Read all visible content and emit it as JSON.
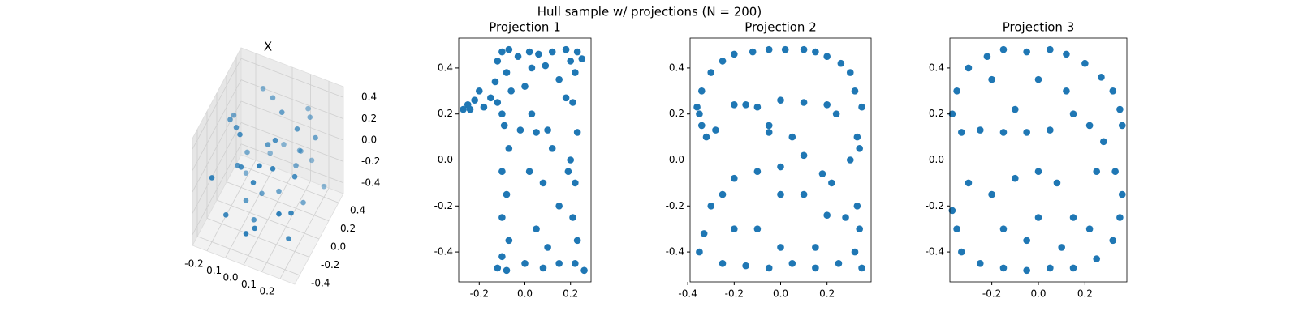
{
  "title": "Hull sample w/ projections (N = 200)",
  "chart_data": [
    {
      "type": "scatter3d",
      "title": "X",
      "color": "#1f77b4",
      "x": [
        -0.2,
        -0.15,
        -0.1,
        -0.05,
        0.0,
        0.05,
        0.1,
        0.15,
        0.2,
        0.22,
        -0.18,
        -0.12,
        -0.08,
        0.02,
        0.08,
        0.12,
        0.18,
        -0.22,
        -0.02,
        0.06,
        0.14,
        -0.16,
        0.1,
        0.2,
        -0.06,
        0.0,
        0.16,
        -0.1,
        0.04,
        0.22,
        -0.2,
        -0.14,
        0.12,
        0.08,
        -0.04,
        0.18,
        -0.24,
        0.0,
        0.1,
        -0.12
      ],
      "y": [
        -0.4,
        -0.3,
        -0.2,
        -0.1,
        0.0,
        0.1,
        0.2,
        0.3,
        0.4,
        -0.35,
        0.25,
        0.35,
        -0.25,
        0.15,
        -0.15,
        0.45,
        -0.45,
        0.05,
        0.4,
        -0.4,
        0.2,
        -0.05,
        0.3,
        -0.2,
        0.1,
        -0.3,
        0.0,
        0.42,
        -0.42,
        0.15,
        0.3,
        -0.1,
        -0.35,
        0.35,
        0.25,
        -0.25,
        0.2,
        -0.45,
        0.45,
        0.0
      ],
      "z": [
        0.1,
        -0.3,
        0.4,
        -0.45,
        0.2,
        0.45,
        -0.1,
        0.3,
        -0.4,
        0.0,
        -0.2,
        0.35,
        0.15,
        -0.35,
        0.42,
        -0.25,
        0.05,
        0.25,
        -0.15,
        0.38,
        -0.42,
        0.3,
        -0.05,
        0.2,
        -0.38,
        0.1,
        0.45,
        -0.3,
        -0.2,
        0.28,
        -0.45,
        0.0,
        0.35,
        -0.1,
        0.4,
        -0.35,
        0.15,
        -0.25,
        0.22,
        -0.4
      ],
      "xlim": [
        -0.28,
        0.28
      ],
      "ylim": [
        -0.5,
        0.5
      ],
      "zlim": [
        -0.5,
        0.5
      ],
      "xticks": [
        -0.2,
        -0.1,
        {
          "value": 0,
          "label": "0.0"
        },
        0.1,
        0.2
      ],
      "yticks": [
        -0.4,
        -0.2,
        {
          "value": 0,
          "label": "0.0"
        },
        0.2,
        0.4
      ],
      "zticks": [
        -0.4,
        -0.2,
        {
          "value": 0,
          "label": "0.0"
        },
        0.2,
        0.4
      ]
    },
    {
      "type": "scatter",
      "title": "Projection 1",
      "color": "#1f77b4",
      "x": [
        -0.1,
        -0.07,
        -0.03,
        0.02,
        0.06,
        0.12,
        0.18,
        0.23,
        0.25,
        0.2,
        -0.12,
        0.09,
        -0.27,
        -0.25,
        -0.22,
        -0.2,
        -0.18,
        -0.15,
        -0.13,
        -0.1,
        -0.12,
        -0.24,
        -0.08,
        -0.06,
        -0.09,
        -0.07,
        -0.1,
        -0.08,
        -0.1,
        -0.07,
        -0.1,
        -0.12,
        -0.08,
        0,
        0.03,
        -0.02,
        0.05,
        0.1,
        0.02,
        0.08,
        0.12,
        0.15,
        0.05,
        0.1,
        0,
        0.08,
        0.15,
        0.03,
        0.15,
        0.18,
        0.22,
        0.21,
        0.23,
        0.2,
        0.22,
        0.21,
        0.23,
        0.22,
        0.26,
        0.19
      ],
      "values": [
        0.47,
        0.48,
        0.45,
        0.47,
        0.46,
        0.47,
        0.48,
        0.47,
        0.44,
        0.43,
        0.43,
        0.41,
        0.22,
        0.24,
        0.26,
        0.3,
        0.23,
        0.27,
        0.34,
        0.2,
        0.25,
        0.22,
        0.38,
        0.3,
        0.15,
        0.05,
        -0.05,
        -0.15,
        -0.25,
        -0.35,
        -0.42,
        -0.47,
        -0.48,
        0.32,
        0.2,
        0.13,
        0.12,
        0.13,
        -0.05,
        -0.1,
        0.05,
        -0.2,
        -0.3,
        -0.38,
        -0.45,
        -0.47,
        -0.45,
        0.4,
        0.35,
        0.27,
        0.38,
        0.25,
        0.12,
        0,
        -0.1,
        -0.25,
        -0.35,
        -0.45,
        -0.48,
        -0.05
      ],
      "xlim": [
        -0.29,
        0.29
      ],
      "ylim": [
        -0.53,
        0.53
      ],
      "xticks": [
        -0.2,
        {
          "value": 0,
          "label": "0.0"
        },
        0.2
      ],
      "yticks": [
        -0.4,
        -0.2,
        {
          "value": 0,
          "label": "0.0"
        },
        0.2,
        0.4
      ]
    },
    {
      "type": "scatter",
      "title": "Projection 2",
      "color": "#1f77b4",
      "x": [
        -0.3,
        -0.25,
        -0.2,
        -0.12,
        -0.05,
        0.02,
        0.1,
        0.15,
        0.2,
        0.26,
        0.3,
        0.32,
        0.35,
        -0.34,
        -0.36,
        -0.34,
        -0.32,
        -0.28,
        -0.35,
        -0.2,
        -0.15,
        -0.1,
        0,
        0.1,
        0.2,
        0.24,
        -0.05,
        0.33,
        0.3,
        0.34,
        0.33,
        0.34,
        0.32,
        0.35,
        -0.3,
        -0.25,
        -0.2,
        -0.1,
        0,
        0.1,
        0.18,
        0.22,
        0,
        0.1,
        0.2,
        0.28,
        -0.05,
        0.05,
        -0.33,
        -0.35,
        -0.25,
        -0.15,
        -0.05,
        0.05,
        0.15,
        0.25,
        0,
        -0.1,
        0.15,
        -0.2
      ],
      "values": [
        0.38,
        0.43,
        0.46,
        0.47,
        0.48,
        0.48,
        0.48,
        0.47,
        0.45,
        0.42,
        0.38,
        0.3,
        0.23,
        0.3,
        0.23,
        0.15,
        0.1,
        0.13,
        0.2,
        0.24,
        0.24,
        0.23,
        0.26,
        0.25,
        0.24,
        0.2,
        0.15,
        0.1,
        0,
        0.05,
        -0.2,
        -0.3,
        -0.4,
        -0.47,
        -0.2,
        -0.15,
        -0.08,
        -0.05,
        -0.03,
        0.02,
        -0.06,
        -0.1,
        -0.15,
        -0.15,
        -0.24,
        -0.25,
        0.12,
        0.1,
        -0.32,
        -0.4,
        -0.45,
        -0.46,
        -0.47,
        -0.45,
        -0.47,
        -0.45,
        -0.38,
        -0.3,
        -0.38,
        -0.3
      ],
      "xlim": [
        -0.39,
        0.39
      ],
      "ylim": [
        -0.53,
        0.53
      ],
      "xticks": [
        -0.4,
        -0.2,
        {
          "value": 0,
          "label": "0.0"
        },
        0.2
      ],
      "yticks": [
        -0.4,
        -0.2,
        {
          "value": 0,
          "label": "0.0"
        },
        0.2,
        0.4
      ]
    },
    {
      "type": "scatter",
      "title": "Projection 3",
      "color": "#1f77b4",
      "x": [
        -0.3,
        -0.22,
        -0.15,
        -0.05,
        0.05,
        0.12,
        0.2,
        0.27,
        0.32,
        0.35,
        0.36,
        -0.35,
        -0.37,
        -0.33,
        -0.25,
        -0.15,
        -0.05,
        0.05,
        0.15,
        0.22,
        0.28,
        -0.1,
        0,
        0.12,
        -0.2,
        -0.35,
        -0.37,
        -0.33,
        -0.25,
        -0.15,
        -0.05,
        0.05,
        0.15,
        0.25,
        0.32,
        0.35,
        0.36,
        0.33,
        -0.3,
        -0.2,
        -0.1,
        0,
        0.08,
        0.15,
        0,
        -0.15,
        0.1,
        -0.05,
        0.22,
        0.25
      ],
      "values": [
        0.4,
        0.45,
        0.48,
        0.47,
        0.48,
        0.46,
        0.42,
        0.36,
        0.3,
        0.22,
        0.15,
        0.3,
        0.2,
        0.12,
        0.13,
        0.12,
        0.12,
        0.13,
        0.2,
        0.15,
        0.08,
        0.22,
        0.35,
        0.3,
        0.35,
        -0.3,
        -0.22,
        -0.4,
        -0.45,
        -0.47,
        -0.48,
        -0.47,
        -0.47,
        -0.43,
        -0.35,
        -0.25,
        -0.15,
        -0.05,
        -0.1,
        -0.15,
        -0.08,
        -0.05,
        -0.1,
        -0.25,
        -0.25,
        -0.3,
        -0.38,
        -0.35,
        -0.3,
        -0.05
      ],
      "xlim": [
        -0.38,
        0.38
      ],
      "ylim": [
        -0.53,
        0.53
      ],
      "xticks": [
        -0.2,
        {
          "value": 0,
          "label": "0.0"
        },
        0.2
      ],
      "yticks": [
        -0.4,
        -0.2,
        {
          "value": 0,
          "label": "0.0"
        },
        0.2,
        0.4
      ]
    }
  ]
}
